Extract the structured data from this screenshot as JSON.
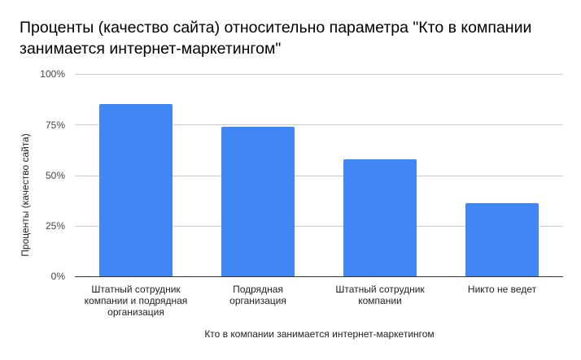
{
  "chart_data": {
    "type": "bar",
    "title": "Проценты (качество сайта) относительно параметра \"Кто в компании занимается интернет-маркетингом\"",
    "xlabel": "Кто в компании занимается интернет-маркетингом",
    "ylabel": "Проценты (качество сайта)",
    "categories": [
      "Штатный сотрудник компании и подрядная организация",
      "Подрядная организация",
      "Штатный сотрудник компании",
      "Никто не ведет"
    ],
    "values": [
      85,
      74,
      58,
      36
    ],
    "unit": "%",
    "ylim": [
      0,
      100
    ],
    "yticks": [
      "0%",
      "25%",
      "50%",
      "75%",
      "100%"
    ],
    "grid": true,
    "legend": "none",
    "bar_color": "#4285f4"
  },
  "title_line1": "Проценты (качество сайта) относительно параметра \"Кто в компании",
  "title_line2": "занимается интернет-маркетингом\"",
  "category_lines": [
    [
      "Штатный сотрудник",
      "компании и подрядная",
      "организация"
    ],
    [
      "Подрядная",
      "организация"
    ],
    [
      "Штатный сотрудник",
      "компании"
    ],
    [
      "Никто не ведет"
    ]
  ]
}
